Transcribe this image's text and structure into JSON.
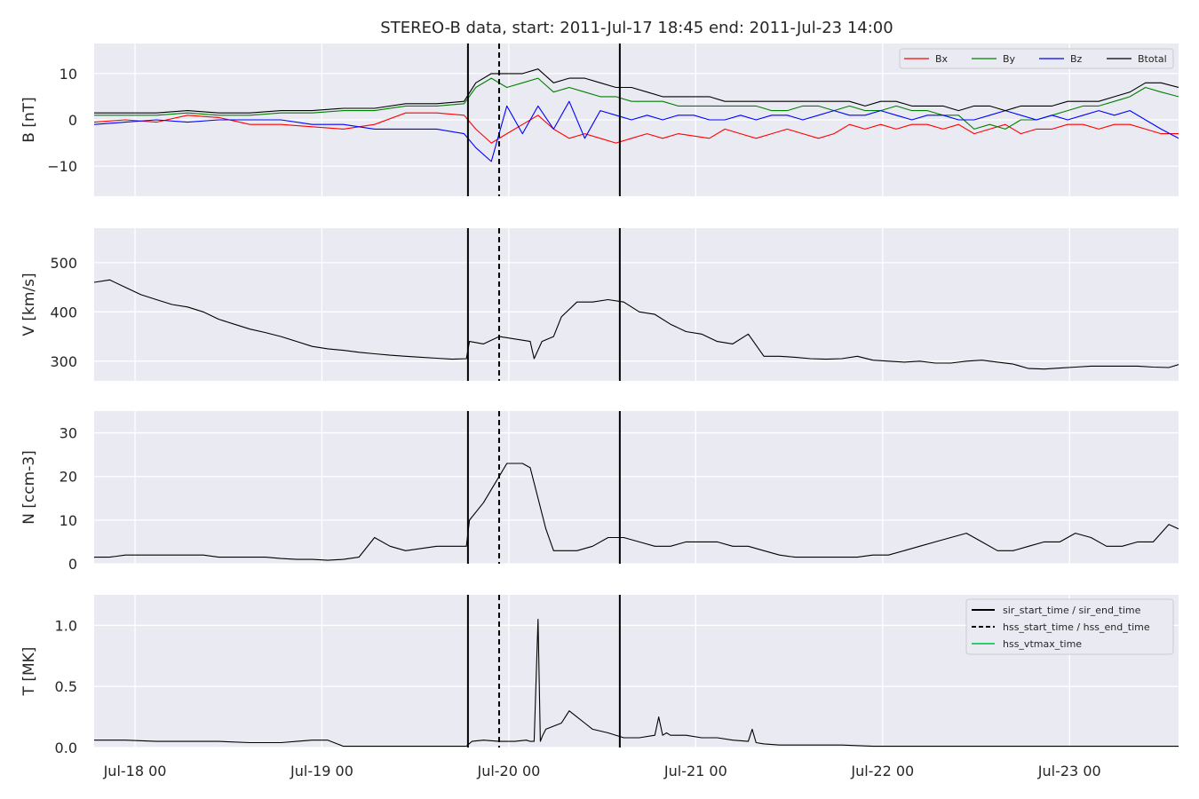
{
  "title": "STEREO-B data, start: 2011-Jul-17 18:45  end: 2011-Jul-23 14:00",
  "x_ticks": [
    {
      "value": 5.25,
      "label": "Jul-18 00"
    },
    {
      "value": 29.25,
      "label": "Jul-19 00"
    },
    {
      "value": 53.25,
      "label": "Jul-20 00"
    },
    {
      "value": 77.25,
      "label": "Jul-21 00"
    },
    {
      "value": 101.25,
      "label": "Jul-22 00"
    },
    {
      "value": 125.25,
      "label": "Jul-23 00"
    }
  ],
  "colors": {
    "panel_bg": "#eaeaf2",
    "grid": "#ffffff",
    "text": "#262626",
    "bx": "#ff0000",
    "by": "#008000",
    "bz": "#0000ff",
    "btotal": "#000000",
    "vtmax": "#2ecc71"
  },
  "chart_data": [
    {
      "type": "line",
      "id": "b",
      "title": "",
      "xlabel": "",
      "ylabel": "B [nT]",
      "xlim": [
        0,
        139.25
      ],
      "ylim": [
        -16.5,
        16.5
      ],
      "yticks": [
        {
          "value": -10,
          "label": "−10"
        },
        {
          "value": 0,
          "label": "0"
        },
        {
          "value": 10,
          "label": "10"
        }
      ],
      "grid": true,
      "legend": "top-right",
      "series": [
        {
          "name": "Bx",
          "color": "#ff0000",
          "x": [
            0,
            4,
            8,
            12,
            16,
            20,
            24,
            28,
            32,
            36,
            40,
            44,
            47.5,
            49,
            51,
            53,
            55,
            57,
            59,
            61,
            63,
            65,
            67,
            69,
            71,
            73,
            75,
            77,
            79,
            81,
            83,
            85,
            87,
            89,
            91,
            93,
            95,
            97,
            99,
            101,
            103,
            105,
            107,
            109,
            111,
            113,
            115,
            117,
            119,
            121,
            123,
            125,
            127,
            129,
            131,
            133,
            135,
            137,
            139.25
          ],
          "y": [
            -0.5,
            0,
            -0.5,
            1,
            0.5,
            -1,
            -1,
            -1.5,
            -2,
            -1,
            1.5,
            1.5,
            1,
            -2,
            -5,
            -3,
            -1,
            1,
            -2,
            -4,
            -3,
            -4,
            -5,
            -4,
            -3,
            -4,
            -3,
            -3.5,
            -4,
            -2,
            -3,
            -4,
            -3,
            -2,
            -3,
            -4,
            -3,
            -1,
            -2,
            -1,
            -2,
            -1,
            -1,
            -2,
            -1,
            -3,
            -2,
            -1,
            -3,
            -2,
            -2,
            -1,
            -1,
            -2,
            -1,
            -1,
            -2,
            -3,
            -3
          ]
        },
        {
          "name": "By",
          "color": "#008000",
          "x": [
            0,
            4,
            8,
            12,
            16,
            20,
            24,
            28,
            32,
            36,
            40,
            44,
            47.5,
            49,
            51,
            53,
            55,
            57,
            59,
            61,
            63,
            65,
            67,
            69,
            71,
            73,
            75,
            77,
            79,
            81,
            83,
            85,
            87,
            89,
            91,
            93,
            95,
            97,
            99,
            101,
            103,
            105,
            107,
            109,
            111,
            113,
            115,
            117,
            119,
            121,
            123,
            125,
            127,
            129,
            131,
            133,
            135,
            137,
            139.25
          ],
          "y": [
            1,
            1,
            1,
            1.5,
            1,
            1,
            1.5,
            1.5,
            2,
            2,
            3,
            3,
            3.5,
            7,
            9,
            7,
            8,
            9,
            6,
            7,
            6,
            5,
            5,
            4,
            4,
            4,
            3,
            3,
            3,
            3,
            3,
            3,
            2,
            2,
            3,
            3,
            2,
            3,
            2,
            2,
            3,
            2,
            2,
            1,
            1,
            -2,
            -1,
            -2,
            0,
            0,
            1,
            2,
            3,
            3,
            4,
            5,
            7,
            6,
            5
          ]
        },
        {
          "name": "Bz",
          "color": "#0000ff",
          "x": [
            0,
            4,
            8,
            12,
            16,
            20,
            24,
            28,
            32,
            36,
            40,
            44,
            47.5,
            49,
            51,
            53,
            55,
            57,
            59,
            61,
            63,
            65,
            67,
            69,
            71,
            73,
            75,
            77,
            79,
            81,
            83,
            85,
            87,
            89,
            91,
            93,
            95,
            97,
            99,
            101,
            103,
            105,
            107,
            109,
            111,
            113,
            115,
            117,
            119,
            121,
            123,
            125,
            127,
            129,
            131,
            133,
            135,
            137,
            139.25
          ],
          "y": [
            -1,
            -0.5,
            0,
            -0.5,
            0,
            0,
            0,
            -1,
            -1,
            -2,
            -2,
            -2,
            -3,
            -6,
            -9,
            3,
            -3,
            3,
            -2,
            4,
            -4,
            2,
            1,
            0,
            1,
            0,
            1,
            1,
            0,
            0,
            1,
            0,
            1,
            1,
            0,
            1,
            2,
            1,
            1,
            2,
            1,
            0,
            1,
            1,
            0,
            0,
            1,
            2,
            1,
            0,
            1,
            0,
            1,
            2,
            1,
            2,
            0,
            -2,
            -4
          ]
        },
        {
          "name": "Btotal",
          "color": "#000000",
          "x": [
            0,
            4,
            8,
            12,
            16,
            20,
            24,
            28,
            32,
            36,
            40,
            44,
            47.5,
            49,
            51,
            53,
            55,
            57,
            59,
            61,
            63,
            65,
            67,
            69,
            71,
            73,
            75,
            77,
            79,
            81,
            83,
            85,
            87,
            89,
            91,
            93,
            95,
            97,
            99,
            101,
            103,
            105,
            107,
            109,
            111,
            113,
            115,
            117,
            119,
            121,
            123,
            125,
            127,
            129,
            131,
            133,
            135,
            137,
            139.25
          ],
          "y": [
            1.5,
            1.5,
            1.5,
            2,
            1.5,
            1.5,
            2,
            2,
            2.5,
            2.5,
            3.5,
            3.5,
            4,
            8,
            10,
            10,
            10,
            11,
            8,
            9,
            9,
            8,
            7,
            7,
            6,
            5,
            5,
            5,
            5,
            4,
            4,
            4,
            4,
            4,
            4,
            4,
            4,
            4,
            3,
            4,
            4,
            3,
            3,
            3,
            2,
            3,
            3,
            2,
            3,
            3,
            3,
            4,
            4,
            4,
            5,
            6,
            8,
            8,
            7
          ]
        }
      ]
    },
    {
      "type": "line",
      "id": "v",
      "title": "",
      "xlabel": "",
      "ylabel": "V [km/s]",
      "xlim": [
        0,
        139.25
      ],
      "ylim": [
        260,
        570
      ],
      "yticks": [
        {
          "value": 300,
          "label": "300"
        },
        {
          "value": 400,
          "label": "400"
        },
        {
          "value": 500,
          "label": "500"
        }
      ],
      "grid": true,
      "series": [
        {
          "name": "",
          "color": "#000000",
          "x": [
            0,
            2,
            4,
            6,
            8,
            10,
            12,
            14,
            16,
            18,
            20,
            22,
            24,
            26,
            28,
            30,
            32,
            34,
            36,
            38,
            40,
            42,
            44,
            46,
            47.8,
            48.2,
            50,
            52,
            54,
            56,
            56.5,
            57.5,
            59,
            60,
            62,
            64,
            66,
            68,
            70,
            72,
            74,
            76,
            78,
            80,
            82,
            84,
            86,
            88,
            90,
            92,
            94,
            96,
            98,
            100,
            102,
            104,
            106,
            108,
            110,
            112,
            114,
            116,
            118,
            120,
            122,
            124,
            126,
            128,
            130,
            132,
            134,
            136,
            138,
            139.25
          ],
          "y": [
            460,
            465,
            450,
            435,
            425,
            415,
            410,
            400,
            385,
            375,
            365,
            358,
            350,
            340,
            330,
            325,
            322,
            318,
            315,
            312,
            310,
            308,
            306,
            304,
            305,
            340,
            335,
            350,
            345,
            340,
            305,
            340,
            350,
            390,
            420,
            420,
            425,
            420,
            400,
            395,
            375,
            360,
            355,
            340,
            335,
            355,
            310,
            310,
            308,
            305,
            304,
            305,
            310,
            302,
            300,
            298,
            300,
            296,
            296,
            300,
            302,
            298,
            294,
            285,
            284,
            286,
            288,
            290,
            290,
            290,
            290,
            288,
            287,
            293
          ]
        }
      ]
    },
    {
      "type": "line",
      "id": "n",
      "title": "",
      "xlabel": "",
      "ylabel": "N [ccm-3]",
      "xlim": [
        0,
        139.25
      ],
      "ylim": [
        0,
        35
      ],
      "yticks": [
        {
          "value": 0,
          "label": "0"
        },
        {
          "value": 10,
          "label": "10"
        },
        {
          "value": 20,
          "label": "20"
        },
        {
          "value": 30,
          "label": "30"
        }
      ],
      "grid": true,
      "series": [
        {
          "name": "",
          "color": "#000000",
          "x": [
            0,
            2,
            4,
            6,
            8,
            10,
            12,
            14,
            16,
            18,
            20,
            22,
            24,
            26,
            28,
            30,
            32,
            34,
            36,
            38,
            40,
            42,
            44,
            46,
            47.8,
            48.2,
            50,
            52,
            53,
            54,
            55,
            56,
            57,
            58,
            59,
            60,
            62,
            64,
            66,
            68,
            70,
            72,
            74,
            76,
            78,
            80,
            82,
            84,
            86,
            88,
            90,
            92,
            94,
            96,
            98,
            100,
            102,
            104,
            106,
            108,
            110,
            112,
            114,
            116,
            118,
            120,
            122,
            124,
            126,
            128,
            130,
            132,
            134,
            136,
            138,
            139.25
          ],
          "y": [
            1.5,
            1.5,
            2,
            2,
            2,
            2,
            2,
            2,
            1.5,
            1.5,
            1.5,
            1.5,
            1.2,
            1,
            1,
            0.8,
            1,
            1.5,
            6,
            4,
            3,
            3.5,
            4,
            4,
            4,
            10,
            14,
            20,
            23,
            23,
            23,
            22,
            15,
            8,
            3,
            3,
            3,
            4,
            6,
            6,
            5,
            4,
            4,
            5,
            5,
            5,
            4,
            4,
            3,
            2,
            1.5,
            1.5,
            1.5,
            1.5,
            1.5,
            2,
            2,
            3,
            4,
            5,
            6,
            7,
            5,
            3,
            3,
            4,
            5,
            5,
            7,
            6,
            4,
            4,
            5,
            5,
            9,
            8
          ]
        }
      ]
    },
    {
      "type": "line",
      "id": "t",
      "title": "",
      "xlabel": "",
      "ylabel": "T [MK]",
      "xlim": [
        0,
        139.25
      ],
      "ylim": [
        0,
        1.25
      ],
      "yticks": [
        {
          "value": 0,
          "label": "0.0"
        },
        {
          "value": 0.5,
          "label": "0.5"
        },
        {
          "value": 1,
          "label": "1.0"
        }
      ],
      "grid": true,
      "legend": "top-right",
      "series": [
        {
          "name": "",
          "color": "#000000",
          "x": [
            0,
            4,
            8,
            12,
            16,
            20,
            24,
            26,
            28,
            30,
            32,
            34,
            36,
            40,
            44,
            47.8,
            48.5,
            50,
            52,
            54,
            55.5,
            56,
            56.5,
            57,
            57.3,
            57.6,
            58,
            60,
            61,
            62,
            63,
            64,
            66,
            68,
            70,
            72,
            72.5,
            73,
            73.5,
            74,
            76,
            78,
            80,
            82,
            84,
            84.5,
            85,
            86,
            88,
            92,
            96,
            100,
            104,
            108,
            112,
            116,
            120,
            124,
            128,
            132,
            136,
            139.25
          ],
          "y": [
            0.06,
            0.06,
            0.05,
            0.05,
            0.05,
            0.04,
            0.04,
            0.05,
            0.06,
            0.06,
            0.01,
            0.01,
            0.01,
            0.01,
            0.01,
            0.01,
            0.05,
            0.06,
            0.05,
            0.05,
            0.06,
            0.05,
            0.05,
            1.05,
            0.05,
            0.1,
            0.15,
            0.2,
            0.3,
            0.25,
            0.2,
            0.15,
            0.12,
            0.08,
            0.08,
            0.1,
            0.25,
            0.1,
            0.12,
            0.1,
            0.1,
            0.08,
            0.08,
            0.06,
            0.05,
            0.15,
            0.04,
            0.03,
            0.02,
            0.02,
            0.02,
            0.01,
            0.01,
            0.01,
            0.01,
            0.01,
            0.01,
            0.01,
            0.01,
            0.01,
            0.01,
            0.01
          ]
        }
      ]
    }
  ],
  "event_lines": [
    {
      "x": 48,
      "style": "solid",
      "name": "sir-start-line"
    },
    {
      "x": 52,
      "style": "dashed",
      "name": "hss-start-line"
    },
    {
      "x": 67.5,
      "style": "solid",
      "name": "sir-end-line"
    }
  ],
  "legend_b": [
    {
      "label": "Bx",
      "color": "#ff0000"
    },
    {
      "label": "By",
      "color": "#008000"
    },
    {
      "label": "Bz",
      "color": "#0000ff"
    },
    {
      "label": "Btotal",
      "color": "#000000"
    }
  ],
  "legend_t": [
    {
      "label": "sir_start_time / sir_end_time",
      "style": "solid",
      "color": "#000000"
    },
    {
      "label": "hss_start_time / hss_end_time",
      "style": "dashed",
      "color": "#000000"
    },
    {
      "label": "hss_vtmax_time",
      "style": "solid",
      "color": "#2ecc71"
    }
  ]
}
